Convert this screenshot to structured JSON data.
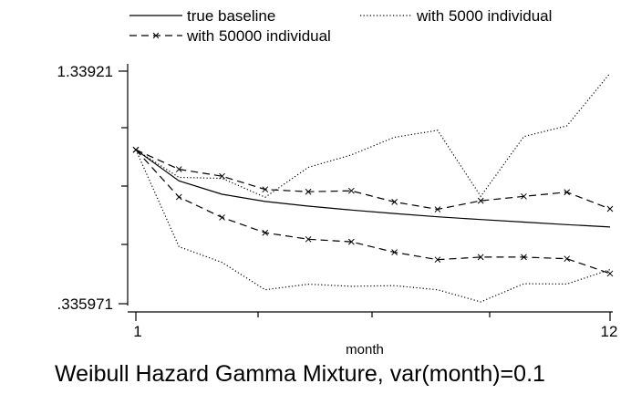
{
  "chart_data": {
    "type": "line",
    "title": "",
    "subtitle": "",
    "caption": "Weibull Hazard Gamma Mixture, var(month)=0.1",
    "xlabel": "month",
    "ylabel": "",
    "xlim": [
      1,
      12
    ],
    "ylim": [
      0.335971,
      1.33921
    ],
    "x_ticks": [
      1,
      12
    ],
    "y_tick_labels": [
      "1.33921",
      ".335971"
    ],
    "grid": false,
    "legend_placement": "top",
    "x": [
      1,
      2,
      3,
      4,
      5,
      6,
      7,
      8,
      9,
      10,
      11,
      12
    ],
    "series": [
      {
        "name": "true baseline",
        "style": "solid",
        "values": [
          1.0,
          0.866,
          0.808,
          0.777,
          0.757,
          0.74,
          0.725,
          0.711,
          0.699,
          0.688,
          0.677,
          0.667
        ]
      },
      {
        "name": "with 5000 individual",
        "style": "dotted",
        "band": "upper",
        "values": [
          1.0,
          0.881,
          0.877,
          0.795,
          0.924,
          0.978,
          1.054,
          1.084,
          0.799,
          1.057,
          1.103,
          1.33
        ]
      },
      {
        "name": "with 5000 individual",
        "style": "dotted",
        "band": "lower",
        "values": [
          1.0,
          0.582,
          0.514,
          0.396,
          0.42,
          0.411,
          0.414,
          0.396,
          0.344,
          0.422,
          0.421,
          0.483
        ]
      },
      {
        "name": "with 50000 individual",
        "style": "dash-x",
        "band": "upper",
        "values": [
          1.0,
          0.916,
          0.886,
          0.829,
          0.819,
          0.823,
          0.775,
          0.743,
          0.78,
          0.799,
          0.817,
          0.745
        ]
      },
      {
        "name": "with 50000 individual",
        "style": "dash-x",
        "band": "lower",
        "values": [
          1.0,
          0.796,
          0.708,
          0.642,
          0.614,
          0.603,
          0.558,
          0.526,
          0.537,
          0.537,
          0.53,
          0.466
        ]
      }
    ],
    "legend": [
      {
        "label": "true baseline",
        "style": "solid"
      },
      {
        "label": "with 5000 individual",
        "style": "dotted"
      },
      {
        "label": "with 50000 individual",
        "style": "dash-x"
      }
    ]
  }
}
